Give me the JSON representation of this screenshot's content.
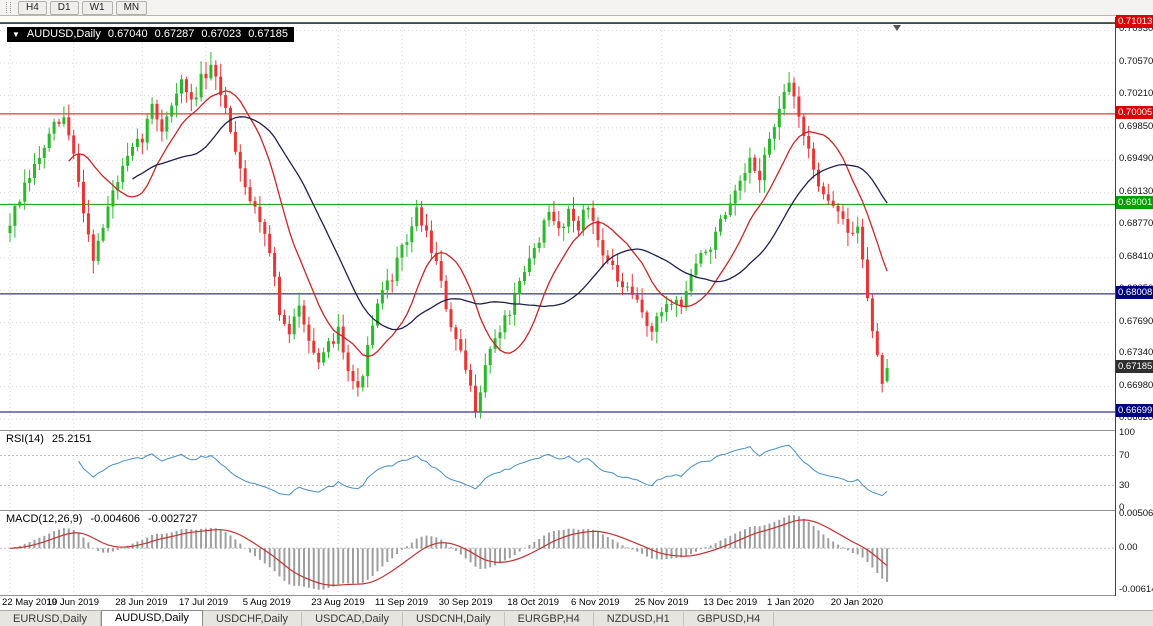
{
  "colors": {
    "bull": "#2bb92b",
    "bear": "#e83535",
    "ma_fast": "#c62828",
    "ma_slow": "#1f1f4e",
    "grid": "#d6d6d6",
    "rsi_line": "#4a8fc7",
    "rsi_levels": "#bdbdbd",
    "macd_hist": "#9e9e9e",
    "macd_signal": "#c23232",
    "title_bg": "#000000"
  },
  "toolbar": {
    "buttons": [
      "H4",
      "D1",
      "W1",
      "MN"
    ]
  },
  "chart": {
    "title_marker": "▼",
    "symbol_title": "AUDUSD,Daily",
    "ohlc": {
      "open": "0.67040",
      "high": "0.67287",
      "low": "0.67023",
      "close": "0.67185"
    },
    "price_axis": {
      "labels": [
        "0.70930",
        "0.70570",
        "0.70210",
        "0.69850",
        "0.69490",
        "0.69130",
        "0.68770",
        "0.68410",
        "0.68050",
        "0.67690",
        "0.67340",
        "0.66980",
        "0.66620"
      ],
      "badges": [
        {
          "text": "0.71013",
          "price": 0.71013,
          "bg": "#dd0000"
        },
        {
          "text": "0.70005",
          "price": 0.70005,
          "bg": "#dd0000"
        },
        {
          "text": "0.69001",
          "price": 0.69001,
          "bg": "#00a000"
        },
        {
          "text": "0.68008",
          "price": 0.68008,
          "bg": "#000080"
        },
        {
          "text": "0.67185",
          "price": 0.67185,
          "bg": "#2f2f2f"
        },
        {
          "text": "0.66699",
          "price": 0.66699,
          "bg": "#000080"
        }
      ]
    },
    "hlines": [
      {
        "price": 0.71013,
        "color": "#ee0000"
      },
      {
        "price": 0.70005,
        "color": "#ee0000"
      },
      {
        "price": 0.69001,
        "color": "#00a000"
      },
      {
        "price": 0.68008,
        "color": "#000080"
      },
      {
        "price": 0.66699,
        "color": "#000080"
      }
    ]
  },
  "chart_data": {
    "type": "candlestick",
    "symbol": "AUDUSD",
    "timeframe": "Daily",
    "bars": 180,
    "price_range": [
      0.6651,
      0.71013
    ],
    "last_bar": {
      "open": 0.6704,
      "high": 0.67287,
      "low": 0.67023,
      "close": 0.67185
    },
    "key_levels": [
      0.71013,
      0.70005,
      0.69001,
      0.68008,
      0.66699
    ],
    "anchors": [
      [
        0,
        0.688
      ],
      [
        2,
        0.6905
      ],
      [
        4,
        0.693
      ],
      [
        6,
        0.6952
      ],
      [
        9,
        0.6985
      ],
      [
        11,
        0.6995
      ],
      [
        13,
        0.6955
      ],
      [
        15,
        0.6895
      ],
      [
        17,
        0.6842
      ],
      [
        19,
        0.6875
      ],
      [
        21,
        0.6915
      ],
      [
        24,
        0.695
      ],
      [
        27,
        0.6975
      ],
      [
        29,
        0.7008
      ],
      [
        31,
        0.6985
      ],
      [
        33,
        0.7012
      ],
      [
        35,
        0.7035
      ],
      [
        37,
        0.7012
      ],
      [
        39,
        0.7038
      ],
      [
        41,
        0.7048
      ],
      [
        43,
        0.7025
      ],
      [
        45,
        0.6985
      ],
      [
        47,
        0.6942
      ],
      [
        49,
        0.6905
      ],
      [
        51,
        0.6885
      ],
      [
        53,
        0.6852
      ],
      [
        55,
        0.6778
      ],
      [
        57,
        0.6752
      ],
      [
        59,
        0.6792
      ],
      [
        61,
        0.6755
      ],
      [
        63,
        0.6718
      ],
      [
        65,
        0.6742
      ],
      [
        67,
        0.6762
      ],
      [
        69,
        0.6722
      ],
      [
        71,
        0.6692
      ],
      [
        73,
        0.6738
      ],
      [
        75,
        0.6788
      ],
      [
        78,
        0.6822
      ],
      [
        81,
        0.6862
      ],
      [
        83,
        0.6892
      ],
      [
        85,
        0.6868
      ],
      [
        87,
        0.6835
      ],
      [
        89,
        0.6785
      ],
      [
        91,
        0.6748
      ],
      [
        93,
        0.6715
      ],
      [
        95,
        0.6675
      ],
      [
        97,
        0.6722
      ],
      [
        99,
        0.6752
      ],
      [
        102,
        0.6782
      ],
      [
        105,
        0.6822
      ],
      [
        107,
        0.6852
      ],
      [
        110,
        0.6888
      ],
      [
        112,
        0.6872
      ],
      [
        114,
        0.6892
      ],
      [
        116,
        0.6878
      ],
      [
        118,
        0.6898
      ],
      [
        120,
        0.6862
      ],
      [
        122,
        0.6838
      ],
      [
        124,
        0.6815
      ],
      [
        126,
        0.6802
      ],
      [
        128,
        0.6792
      ],
      [
        131,
        0.6758
      ],
      [
        133,
        0.6782
      ],
      [
        135,
        0.6795
      ],
      [
        137,
        0.6788
      ],
      [
        139,
        0.6822
      ],
      [
        141,
        0.6842
      ],
      [
        143,
        0.6855
      ],
      [
        145,
        0.6878
      ],
      [
        147,
        0.6895
      ],
      [
        149,
        0.6922
      ],
      [
        151,
        0.6945
      ],
      [
        153,
        0.6932
      ],
      [
        155,
        0.6972
      ],
      [
        157,
        0.7002
      ],
      [
        159,
        0.7035
      ],
      [
        161,
        0.7002
      ],
      [
        163,
        0.6955
      ],
      [
        165,
        0.6925
      ],
      [
        167,
        0.6908
      ],
      [
        169,
        0.6892
      ],
      [
        171,
        0.6868
      ],
      [
        173,
        0.6872
      ],
      [
        174,
        0.6842
      ],
      [
        175,
        0.6802
      ],
      [
        176,
        0.6758
      ],
      [
        177,
        0.6728
      ],
      [
        178,
        0.6705
      ],
      [
        179,
        0.67185
      ]
    ],
    "x_ticks": [
      {
        "label": "22 May 2019",
        "bar": 0
      },
      {
        "label": "10 Jun 2019",
        "bar": 13
      },
      {
        "label": "28 Jun 2019",
        "bar": 27
      },
      {
        "label": "17 Jul 2019",
        "bar": 40
      },
      {
        "label": "5 Aug 2019",
        "bar": 53
      },
      {
        "label": "23 Aug 2019",
        "bar": 67
      },
      {
        "label": "11 Sep 2019",
        "bar": 80
      },
      {
        "label": "30 Sep 2019",
        "bar": 93
      },
      {
        "label": "18 Oct 2019",
        "bar": 107
      },
      {
        "label": "6 Nov 2019",
        "bar": 120
      },
      {
        "label": "25 Nov 2019",
        "bar": 133
      },
      {
        "label": "13 Dec 2019",
        "bar": 147
      },
      {
        "label": "1 Jan 2020",
        "bar": 160
      },
      {
        "label": "20 Jan 2020",
        "bar": 173
      }
    ],
    "moving_averages": [
      {
        "period": 13,
        "color_key": "ma_fast"
      },
      {
        "period": 26,
        "color_key": "ma_slow"
      }
    ],
    "rsi": {
      "label": "RSI(14)",
      "value": "25.2151",
      "period": 14,
      "levels": [
        70,
        30
      ],
      "axis": [
        {
          "text": "100",
          "v": 100
        },
        {
          "text": "70",
          "v": 70
        },
        {
          "text": "30",
          "v": 30
        },
        {
          "text": "0",
          "v": 0
        }
      ]
    },
    "macd": {
      "label": "MACD(12,26,9)",
      "main": "-0.004606",
      "signal": "-0.002727",
      "fast": 12,
      "slow": 26,
      "signal_period": 9,
      "axis": [
        {
          "text": "0.00506",
          "v": 0.00506
        },
        {
          "text": "0.00",
          "v": 0
        },
        {
          "text": "-0.00614",
          "v": -0.00614
        }
      ]
    }
  },
  "tabs": {
    "items": [
      "EURUSD,Daily",
      "AUDUSD,Daily",
      "USDCHF,Daily",
      "USDCAD,Daily",
      "USDCNH,Daily",
      "EURGBP,H4",
      "NZDUSD,H1",
      "GBPUSD,H4"
    ],
    "active": "AUDUSD,Daily"
  }
}
